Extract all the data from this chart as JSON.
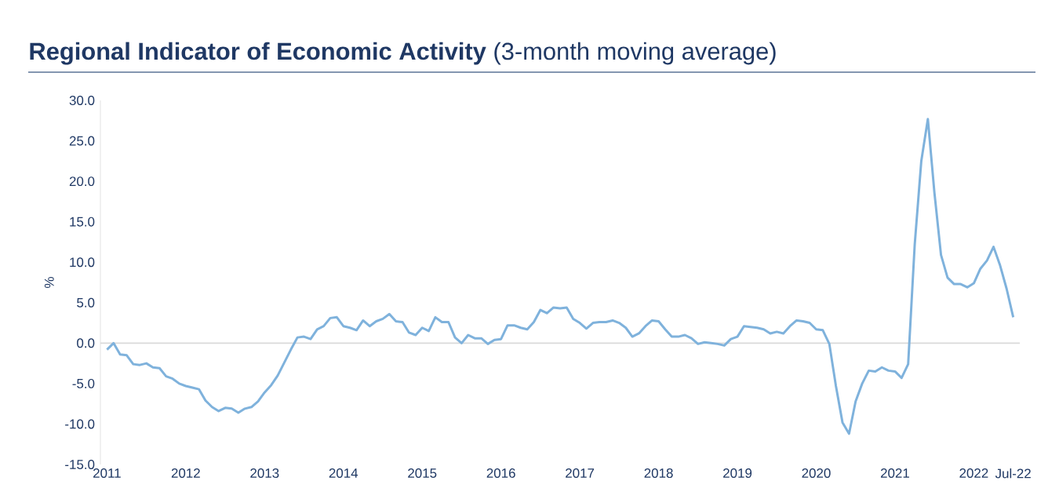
{
  "chart_data": {
    "type": "line",
    "title": "**Regional Indicator of Economic Activity** (3-month moving average)",
    "ylabel": "%",
    "color": "#7fb2dc",
    "line_style": "solid",
    "x": [
      "2011-01",
      "2011-02",
      "2011-03",
      "2011-04",
      "2011-05",
      "2011-06",
      "2011-07",
      "2011-08",
      "2011-09",
      "2011-10",
      "2011-11",
      "2011-12",
      "2012-01",
      "2012-02",
      "2012-03",
      "2012-04",
      "2012-05",
      "2012-06",
      "2012-07",
      "2012-08",
      "2012-09",
      "2012-10",
      "2012-11",
      "2012-12",
      "2013-01",
      "2013-02",
      "2013-03",
      "2013-04",
      "2013-05",
      "2013-06",
      "2013-07",
      "2013-08",
      "2013-09",
      "2013-10",
      "2013-11",
      "2013-12",
      "2014-01",
      "2014-02",
      "2014-03",
      "2014-04",
      "2014-05",
      "2014-06",
      "2014-07",
      "2014-08",
      "2014-09",
      "2014-10",
      "2014-11",
      "2014-12",
      "2015-01",
      "2015-02",
      "2015-03",
      "2015-04",
      "2015-05",
      "2015-06",
      "2015-07",
      "2015-08",
      "2015-09",
      "2015-10",
      "2015-11",
      "2015-12",
      "2016-01",
      "2016-02",
      "2016-03",
      "2016-04",
      "2016-05",
      "2016-06",
      "2016-07",
      "2016-08",
      "2016-09",
      "2016-10",
      "2016-11",
      "2016-12",
      "2017-01",
      "2017-02",
      "2017-03",
      "2017-04",
      "2017-05",
      "2017-06",
      "2017-07",
      "2017-08",
      "2017-09",
      "2017-10",
      "2017-11",
      "2017-12",
      "2018-01",
      "2018-02",
      "2018-03",
      "2018-04",
      "2018-05",
      "2018-06",
      "2018-07",
      "2018-08",
      "2018-09",
      "2018-10",
      "2018-11",
      "2018-12",
      "2019-01",
      "2019-02",
      "2019-03",
      "2019-04",
      "2019-05",
      "2019-06",
      "2019-07",
      "2019-08",
      "2019-09",
      "2019-10",
      "2019-11",
      "2019-12",
      "2020-01",
      "2020-02",
      "2020-03",
      "2020-04",
      "2020-05",
      "2020-06",
      "2020-07",
      "2020-08",
      "2020-09",
      "2020-10",
      "2020-11",
      "2020-12",
      "2021-01",
      "2021-02",
      "2021-03",
      "2021-04",
      "2021-05",
      "2021-06",
      "2021-07",
      "2021-08",
      "2021-09",
      "2021-10",
      "2021-11",
      "2021-12",
      "2022-01",
      "2022-02",
      "2022-03",
      "2022-04",
      "2022-05",
      "2022-06",
      "2022-07"
    ],
    "values": [
      -0.8,
      0,
      -1.4,
      -1.5,
      -2.6,
      -2.7,
      -2.5,
      -3.0,
      -3.1,
      -4.1,
      -4.4,
      -5.0,
      -5.3,
      -5.5,
      -5.7,
      -7.1,
      -7.9,
      -8.4,
      -8.0,
      -8.1,
      -8.6,
      -8.1,
      -7.9,
      -7.2,
      -6.1,
      -5.2,
      -4.0,
      -2.4,
      -0.8,
      0.7,
      0.8,
      0.5,
      1.7,
      2.1,
      3.1,
      3.2,
      2.1,
      1.9,
      1.6,
      2.8,
      2.1,
      2.7,
      3.0,
      3.6,
      2.7,
      2.6,
      1.3,
      1.0,
      1.9,
      1.5,
      3.2,
      2.6,
      2.6,
      0.7,
      0,
      1.0,
      0.6,
      0.6,
      -0.1,
      0.4,
      0.5,
      2.2,
      2.2,
      1.9,
      1.7,
      2.6,
      4.1,
      3.7,
      4.4,
      4.3,
      4.4,
      3.0,
      2.5,
      1.8,
      2.5,
      2.6,
      2.6,
      2.8,
      2.5,
      1.9,
      0.8,
      1.2,
      2.1,
      2.8,
      2.7,
      1.7,
      0.8,
      0.8,
      1.0,
      0.6,
      -0.1,
      0.1,
      0,
      -0.1,
      -0.3,
      0.5,
      0.8,
      2.1,
      2.0,
      1.9,
      1.7,
      1.2,
      1.4,
      1.2,
      2.1,
      2.8,
      2.7,
      2.5,
      1.7,
      1.6,
      -0.1,
      -5.3,
      -9.8,
      -11.2,
      -7.2,
      -5.0,
      -3.4,
      -3.5,
      -3.0,
      -3.4,
      -3.5,
      -4.3,
      -2.6,
      12.2,
      22.5,
      27.7,
      18.6,
      10.9,
      8.1,
      7.3,
      7.3,
      6.9,
      7.4,
      9.2,
      10.2,
      11.9,
      9.6,
      6.7,
      3.2
    ],
    "xlim": [
      "2010-12",
      "2022-08"
    ],
    "xticks": [
      {
        "value": "2011-01",
        "label": "2011"
      },
      {
        "value": "2012-01",
        "label": "2012"
      },
      {
        "value": "2013-01",
        "label": "2013"
      },
      {
        "value": "2014-01",
        "label": "2014"
      },
      {
        "value": "2015-01",
        "label": "2015"
      },
      {
        "value": "2016-01",
        "label": "2016"
      },
      {
        "value": "2017-01",
        "label": "2017"
      },
      {
        "value": "2018-01",
        "label": "2018"
      },
      {
        "value": "2019-01",
        "label": "2019"
      },
      {
        "value": "2020-01",
        "label": "2020"
      },
      {
        "value": "2021-01",
        "label": "2021"
      },
      {
        "value": "2022-01",
        "label": "2022"
      },
      {
        "value": "2022-07",
        "label": "Jul-22"
      }
    ],
    "ylim": [
      -15,
      30
    ],
    "yticks": [
      {
        "value": -15,
        "label": "-15.0"
      },
      {
        "value": -10,
        "label": "-10.0"
      },
      {
        "value": -5,
        "label": "-5.0"
      },
      {
        "value": 0,
        "label": "0.0"
      },
      {
        "value": 5,
        "label": "5.0"
      },
      {
        "value": 10,
        "label": "10.0"
      },
      {
        "value": 15,
        "label": "15.0"
      },
      {
        "value": 20,
        "label": "20.0"
      },
      {
        "value": 25,
        "label": "25.0"
      },
      {
        "value": 30,
        "label": "30.0"
      }
    ],
    "ref_lines": [
      {
        "axis": "y",
        "value": 0,
        "color": "#d9d9d9"
      }
    ]
  }
}
